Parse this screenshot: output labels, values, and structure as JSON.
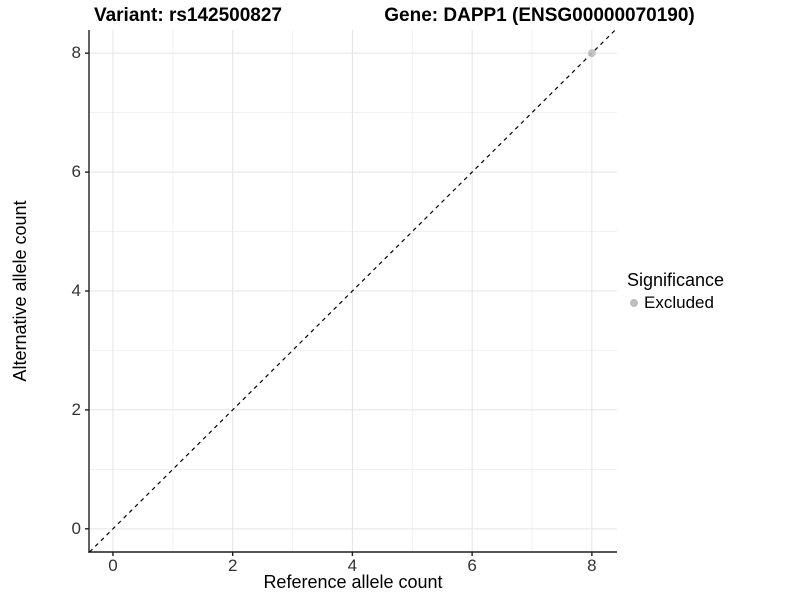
{
  "chart_data": {
    "type": "scatter",
    "title_left": "Variant: rs142500827",
    "title_right": "Gene: DAPP1 (ENSG00000070190)",
    "xlabel": "Reference allele count",
    "ylabel": "Alternative allele count",
    "xlim": [
      -0.4,
      8.42
    ],
    "ylim": [
      -0.39,
      8.39
    ],
    "x_ticks": [
      0,
      2,
      4,
      6,
      8
    ],
    "y_ticks": [
      0,
      2,
      4,
      6,
      8
    ],
    "x_minor_ticks": [
      1,
      3,
      5,
      7
    ],
    "y_minor_ticks": [
      1,
      3,
      5,
      7
    ],
    "grid": "major+minor",
    "legend_position": "right",
    "reference_line": {
      "type": "identity",
      "slope": 1,
      "intercept": 0,
      "style": "dashed",
      "color": "#000000"
    },
    "series": [
      {
        "name": "Excluded",
        "color": "#bebebe",
        "points": [
          {
            "x": 8,
            "y": 8
          }
        ]
      }
    ]
  },
  "legend": {
    "title": "Significance",
    "items": [
      {
        "label": "Excluded",
        "color": "#bebebe",
        "marker": "circle-dot-icon"
      }
    ]
  },
  "colors": {
    "background": "#ffffff",
    "grid_major": "#e4e4e4",
    "grid_minor": "#f1f1f1",
    "axis_line": "#1f1f1f",
    "tick_text": "#333333",
    "point": "#bebebe"
  }
}
